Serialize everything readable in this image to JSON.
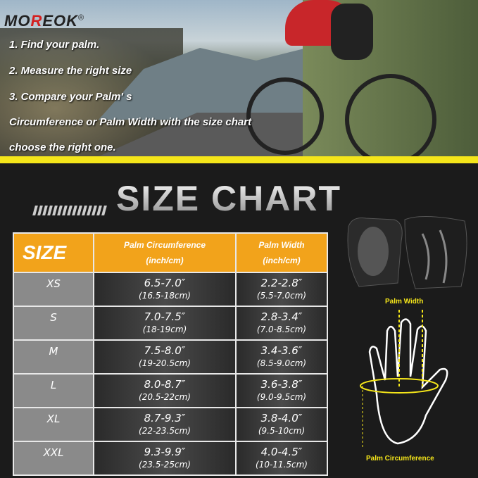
{
  "brand": {
    "name_a": "MO",
    "name_b": "R",
    "name_c": "EOK",
    "registered": "®"
  },
  "steps": [
    "1. Find your palm.",
    "2. Measure the right size",
    "3. Compare your Palm' s",
    "Circumference or Palm Width with the size chart",
    "choose the right one."
  ],
  "title": "SIZE CHART",
  "table": {
    "headers": {
      "size": "SIZE",
      "circ": "Palm Circumference",
      "circ_unit": "(inch/cm)",
      "width": "Palm Width",
      "width_unit": "(inch/cm)"
    },
    "rows": [
      {
        "size": "XS",
        "circ_in": "6.5-7.0″",
        "circ_cm": "(16.5-18cm)",
        "width_in": "2.2-2.8″",
        "width_cm": "(5.5-7.0cm)"
      },
      {
        "size": "S",
        "circ_in": "7.0-7.5″",
        "circ_cm": "(18-19cm)",
        "width_in": "2.8-3.4″",
        "width_cm": "(7.0-8.5cm)"
      },
      {
        "size": "M",
        "circ_in": "7.5-8.0″",
        "circ_cm": "(19-20.5cm)",
        "width_in": "3.4-3.6″",
        "width_cm": "(8.5-9.0cm)"
      },
      {
        "size": "L",
        "circ_in": "8.0-8.7″",
        "circ_cm": "(20.5-22cm)",
        "width_in": "3.6-3.8″",
        "width_cm": "(9.0-9.5cm)"
      },
      {
        "size": "XL",
        "circ_in": "8.7-9.3″",
        "circ_cm": "(22-23.5cm)",
        "width_in": "3.8-4.0″",
        "width_cm": "(9.5-10cm)"
      },
      {
        "size": "XXL",
        "circ_in": "9.3-9.9″",
        "circ_cm": "(23.5-25cm)",
        "width_in": "4.0-4.5″",
        "width_cm": "(10-11.5cm)"
      }
    ]
  },
  "diagram": {
    "palm_width": "Palm Width",
    "palm_circumference": "Palm Circumference"
  },
  "colors": {
    "header": "#f2a31b",
    "accent": "#f5e61a",
    "logo_red": "#d42020"
  }
}
